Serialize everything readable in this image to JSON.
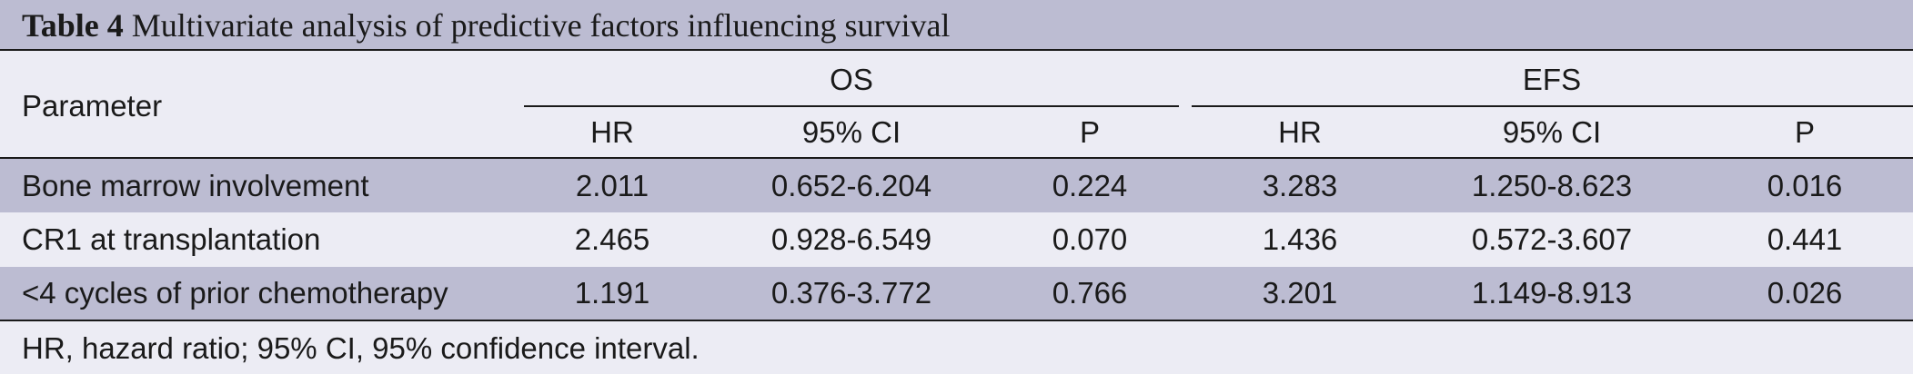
{
  "table": {
    "label": "Table 4",
    "title": "Multivariate analysis of predictive factors influencing survival",
    "header": {
      "parameter": "Parameter",
      "group_os": "OS",
      "group_efs": "EFS",
      "os": {
        "hr": "HR",
        "ci": "95% CI",
        "p": "P"
      },
      "efs": {
        "hr": "HR",
        "ci": "95% CI",
        "p": "P"
      }
    },
    "rows": [
      {
        "parameter": "Bone marrow involvement",
        "os_hr": "2.011",
        "os_ci": "0.652-6.204",
        "os_p": "0.224",
        "efs_hr": "3.283",
        "efs_ci": "1.250-8.623",
        "efs_p": "0.016"
      },
      {
        "parameter": "CR1 at transplantation",
        "os_hr": "2.465",
        "os_ci": "0.928-6.549",
        "os_p": "0.070",
        "efs_hr": "1.436",
        "efs_ci": "0.572-3.607",
        "efs_p": "0.441"
      },
      {
        "parameter": "<4 cycles of prior chemotherapy",
        "os_hr": "1.191",
        "os_ci": "0.376-3.772",
        "os_p": "0.766",
        "efs_hr": "3.201",
        "efs_ci": "1.149-8.913",
        "efs_p": "0.026"
      }
    ],
    "footnote": "HR, hazard ratio; 95% CI, 95% confidence interval."
  }
}
